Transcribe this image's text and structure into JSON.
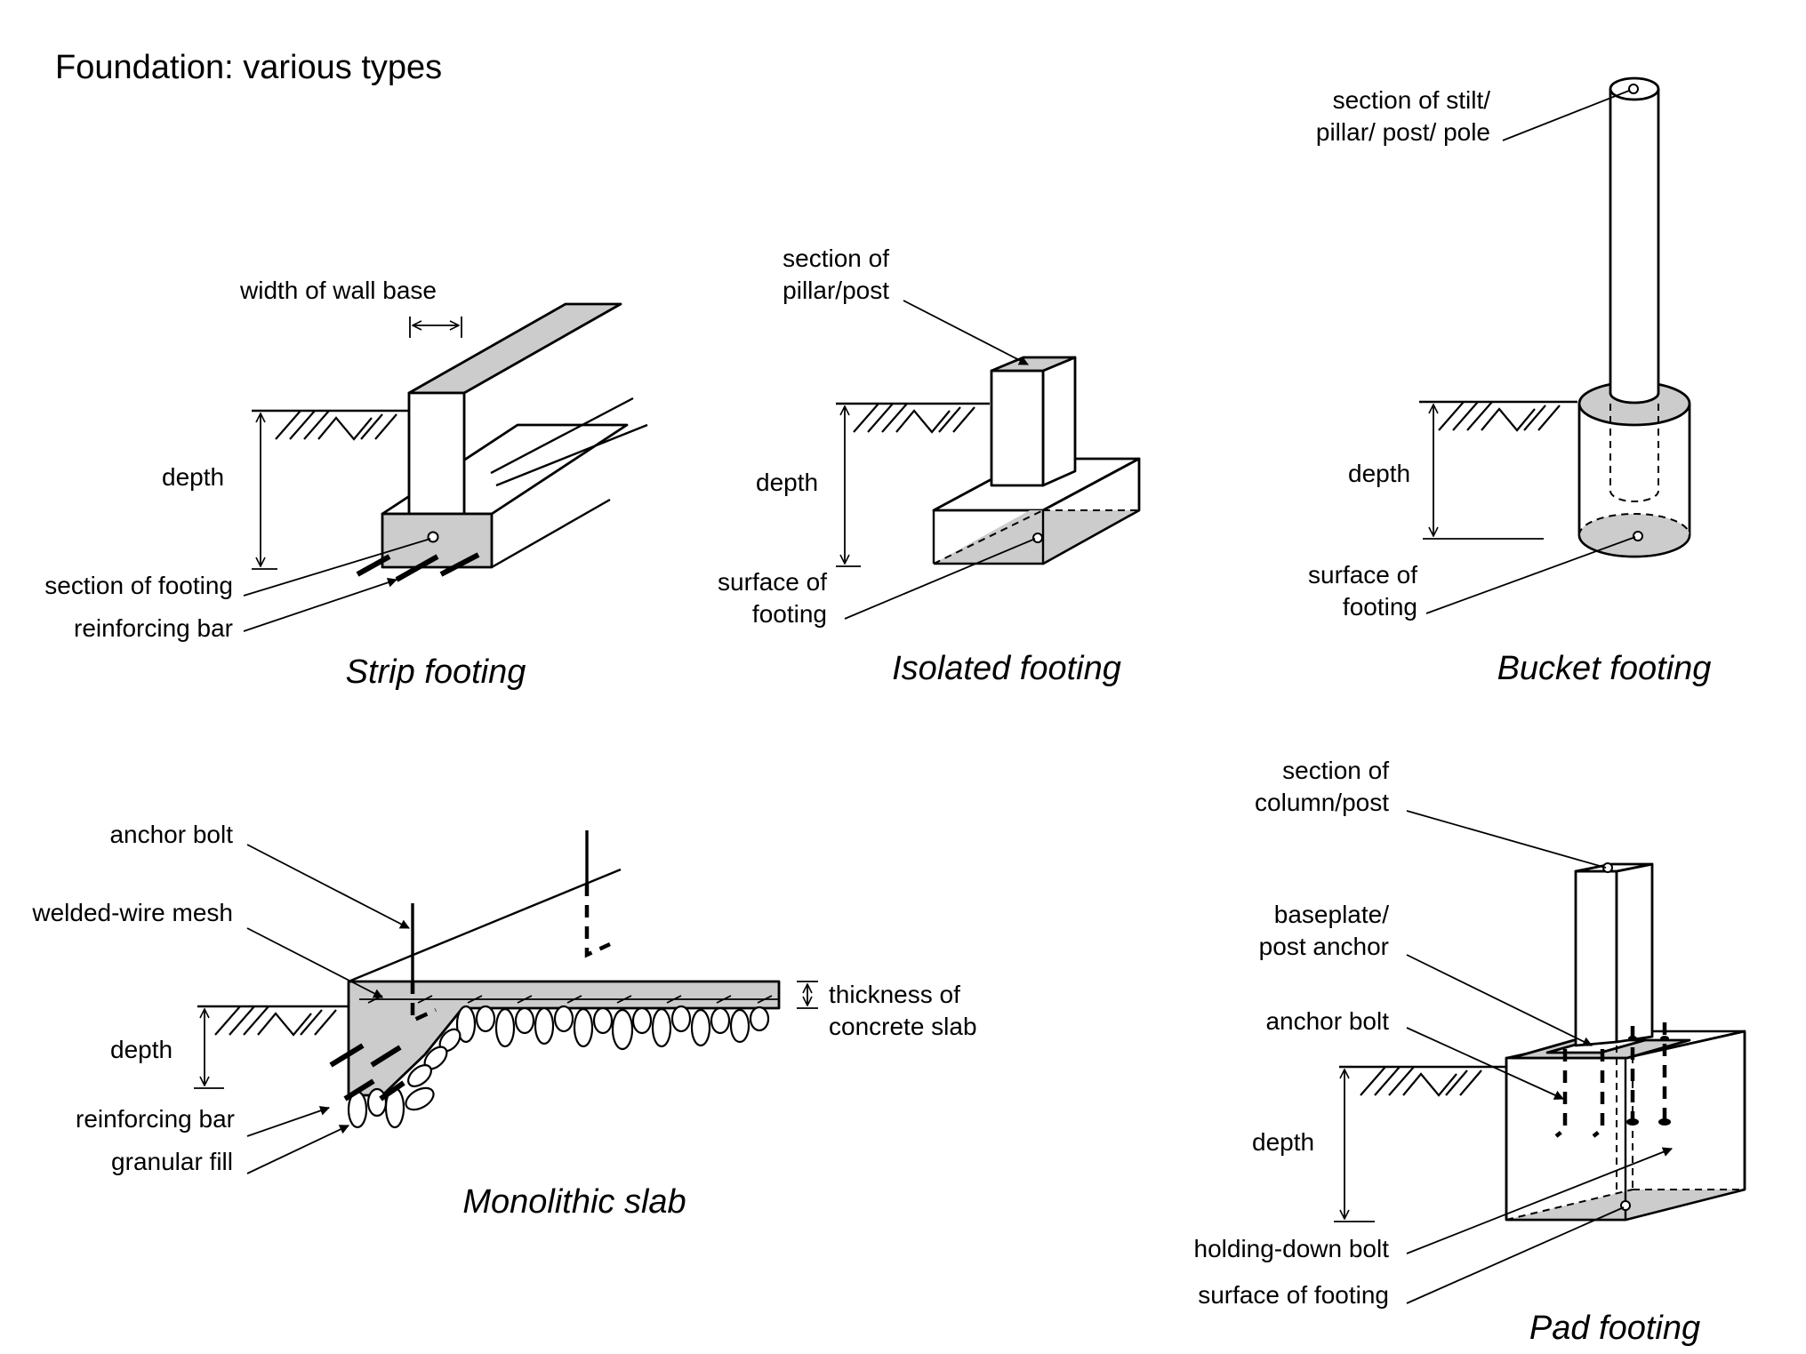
{
  "title": "Foundation: various types",
  "strip": {
    "caption": "Strip footing",
    "width_label": "width of wall base",
    "depth_label": "depth",
    "section_label": "section of footing",
    "bar_label": "reinforcing bar"
  },
  "isolated": {
    "caption": "Isolated footing",
    "pillar_label_1": "section of",
    "pillar_label_2": "pillar/post",
    "depth_label": "depth",
    "surface_label_1": "surface of",
    "surface_label_2": "footing"
  },
  "bucket": {
    "caption": "Bucket footing",
    "stilt_label_1": "section of stilt/",
    "stilt_label_2": "pillar/ post/ pole",
    "depth_label": "depth",
    "surface_label_1": "surface of",
    "surface_label_2": "footing"
  },
  "monolithic": {
    "caption": "Monolithic slab",
    "anchor_label": "anchor bolt",
    "mesh_label": "welded-wire mesh",
    "depth_label": "depth",
    "bar_label": "reinforcing bar",
    "fill_label": "granular fill",
    "thickness_label_1": "thickness of",
    "thickness_label_2": "concrete slab"
  },
  "pad": {
    "caption": "Pad footing",
    "column_label_1": "section of",
    "column_label_2": "column/post",
    "baseplate_label_1": "baseplate/",
    "baseplate_label_2": "post anchor",
    "anchor_label": "anchor bolt",
    "depth_label": "depth",
    "holding_label": "holding-down bolt",
    "surface_label": "surface of footing"
  }
}
